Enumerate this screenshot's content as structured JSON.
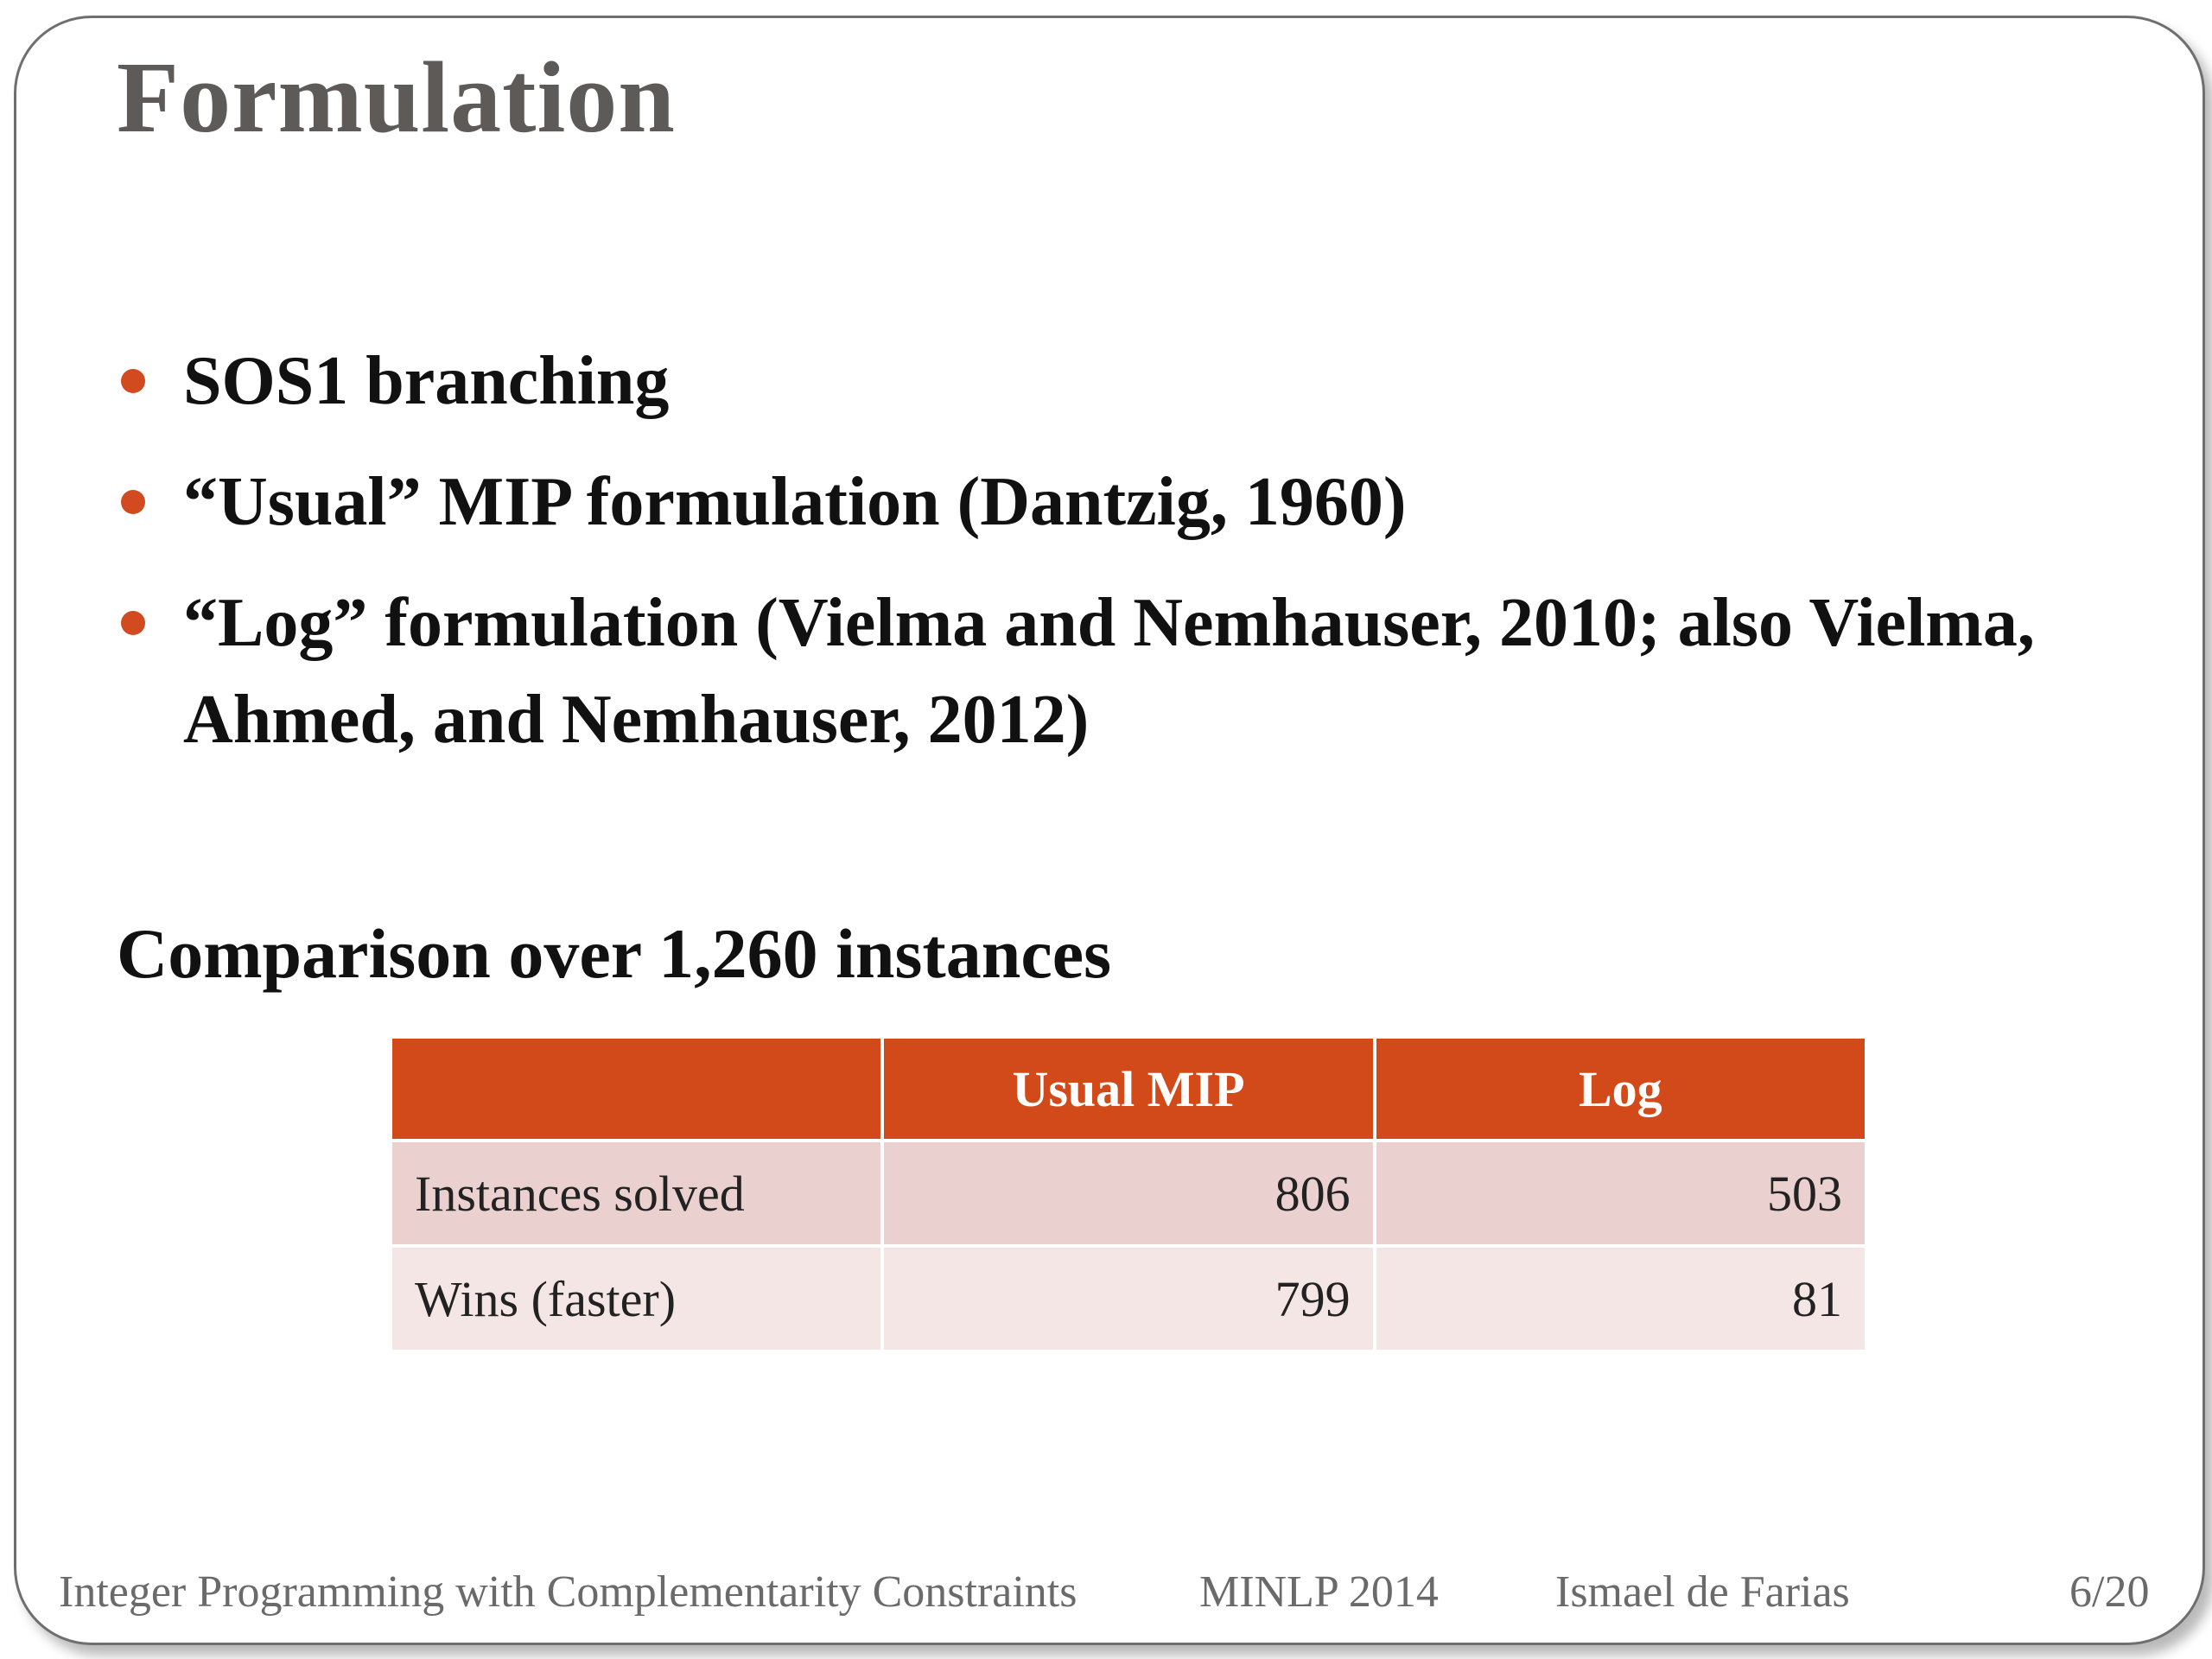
{
  "slide": {
    "title": "Formulation",
    "bullets": [
      {
        "text": "SOS1 branching"
      },
      {
        "text": "“Usual” MIP formulation (Dantzig, 1960)"
      },
      {
        "text": "“Log” formulation (Vielma and Nemhauser, 2010; also Vielma, Ahmed, and Nemhauser, 2012)"
      }
    ],
    "section_heading": "Comparison over 1,260 instances",
    "table": {
      "headers": [
        "",
        "Usual MIP",
        "Log"
      ],
      "rows": [
        {
          "label": "Instances solved",
          "usual_mip": "806",
          "log": "503"
        },
        {
          "label": "Wins (faster)",
          "usual_mip": "799",
          "log": "81"
        }
      ]
    },
    "accent_color": "#d24a1a"
  },
  "footer": {
    "talk_title": "Integer Programming with Complementarity Constraints",
    "conference": "MINLP 2014",
    "author": "Ismael de Farias",
    "page": "6/20"
  }
}
